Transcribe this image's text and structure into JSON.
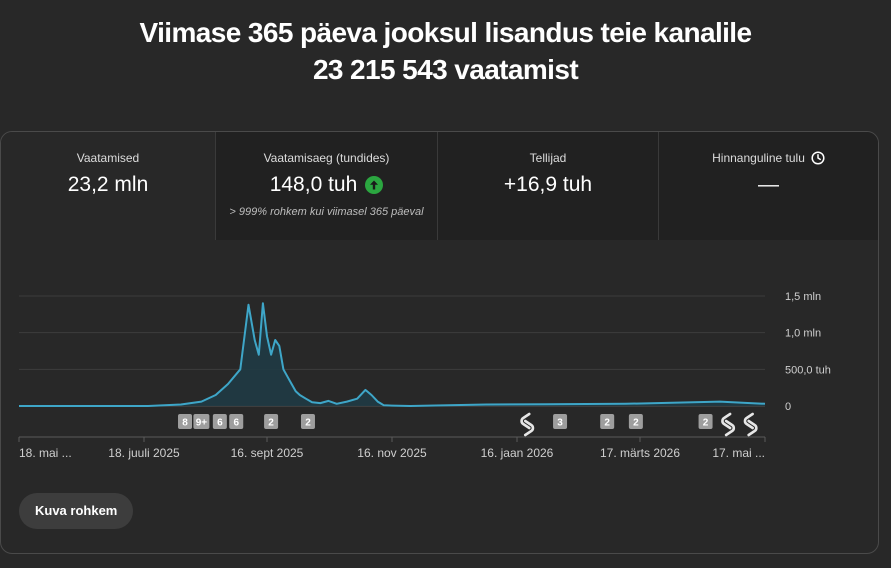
{
  "header": {
    "line1": "Viimase 365 päeva jooksul lisandus teie kanalile",
    "line2": "23 215 543 vaatamist"
  },
  "tabs": [
    {
      "label": "Vaatamised",
      "value": "23,2 mln",
      "sub": "",
      "active": true
    },
    {
      "label": "Vaatamisaeg (tundides)",
      "value": "148,0 tuh",
      "sub": "> 999% rohkem kui viimasel 365 päeval",
      "icon": "arrow-up-circle-icon",
      "active": false
    },
    {
      "label": "Tellijad",
      "value": "+16,9 tuh",
      "sub": "",
      "active": false
    },
    {
      "label": "Hinnanguline tulu",
      "value": "—",
      "sub": "",
      "icon": "clock-icon",
      "active": false
    }
  ],
  "colors": {
    "line": "#3ea6c8",
    "area": "#1f3a44",
    "accent_up": "#2ba640"
  },
  "chart_data": {
    "type": "line",
    "ylim": [
      0,
      1500000
    ],
    "y_ticks": [
      {
        "value": 0,
        "label": "0"
      },
      {
        "value": 500000,
        "label": "500,0 tuh"
      },
      {
        "value": 1000000,
        "label": "1,0 mln"
      },
      {
        "value": 1500000,
        "label": "1,5 mln"
      }
    ],
    "x_ticks": [
      "18. mai ...",
      "18. juuli 2025",
      "16. sept 2025",
      "16. nov 2025",
      "16. jaan 2026",
      "17. märts 2026",
      "17. mai ..."
    ],
    "series": [
      {
        "x": [
          "2025-05-18",
          "2025-07-20",
          "2025-08-05",
          "2025-08-15",
          "2025-08-22",
          "2025-08-28",
          "2025-09-03",
          "2025-09-07",
          "2025-09-10",
          "2025-09-12",
          "2025-09-14",
          "2025-09-16",
          "2025-09-18",
          "2025-09-20",
          "2025-09-22",
          "2025-09-24",
          "2025-09-26",
          "2025-09-28",
          "2025-09-30",
          "2025-10-02",
          "2025-10-05",
          "2025-10-08",
          "2025-10-12",
          "2025-10-16",
          "2025-10-20",
          "2025-10-25",
          "2025-10-30",
          "2025-11-03",
          "2025-11-06",
          "2025-11-09",
          "2025-11-12",
          "2025-11-16",
          "2025-11-25",
          "2026-01-01",
          "2026-01-30",
          "2026-03-10",
          "2026-04-25",
          "2026-05-17"
        ],
        "values": [
          0,
          0,
          20000,
          60000,
          150000,
          300000,
          500000,
          1380000,
          900000,
          700000,
          1400000,
          950000,
          700000,
          900000,
          820000,
          500000,
          400000,
          300000,
          200000,
          150000,
          100000,
          50000,
          40000,
          70000,
          30000,
          60000,
          100000,
          220000,
          150000,
          60000,
          10000,
          5000,
          0,
          20000,
          25000,
          30000,
          60000,
          30000
        ]
      }
    ],
    "badges": [
      {
        "date": "2025-08-07",
        "label": "8"
      },
      {
        "date": "2025-08-15",
        "label": "9+"
      },
      {
        "date": "2025-08-24",
        "label": "6"
      },
      {
        "date": "2025-09-01",
        "label": "6"
      },
      {
        "date": "2025-09-18",
        "label": "2"
      },
      {
        "date": "2025-10-06",
        "label": "2"
      },
      {
        "date": "2026-01-21",
        "label": "shorts",
        "icon": "shorts-icon"
      },
      {
        "date": "2026-02-06",
        "label": "3"
      },
      {
        "date": "2026-03-01",
        "label": "2"
      },
      {
        "date": "2026-03-15",
        "label": "2"
      },
      {
        "date": "2026-04-18",
        "label": "2"
      },
      {
        "date": "2026-04-29",
        "label": "shorts",
        "icon": "shorts-icon"
      },
      {
        "date": "2026-05-10",
        "label": "shorts",
        "icon": "shorts-icon"
      }
    ]
  },
  "show_more_label": "Kuva rohkem"
}
